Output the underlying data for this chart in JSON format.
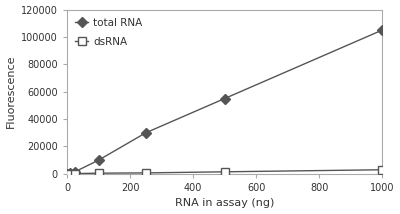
{
  "total_rna_x": [
    0,
    10,
    25,
    100,
    250,
    500,
    1000
  ],
  "total_rna_y": [
    0,
    500,
    1500,
    10000,
    30000,
    55000,
    105000
  ],
  "dsrna_x": [
    0,
    10,
    25,
    100,
    250,
    500,
    1000
  ],
  "dsrna_y": [
    0,
    100,
    200,
    500,
    700,
    1500,
    3000
  ],
  "total_rna_label": "total RNA",
  "dsrna_label": "dsRNA",
  "xlabel": "RNA in assay (ng)",
  "ylabel": "Fluorescence",
  "ylim": [
    0,
    120000
  ],
  "xlim": [
    0,
    1000
  ],
  "yticks": [
    0,
    20000,
    40000,
    60000,
    80000,
    100000,
    120000
  ],
  "xticks": [
    0,
    200,
    400,
    600,
    800,
    1000
  ],
  "background_color": "#ffffff",
  "line_color": "#555555",
  "marker_total_rna": "D",
  "marker_dsrna": "s",
  "marker_color_total_rna": "#555555",
  "marker_color_dsrna": "#ffffff",
  "marker_edge_color_dsrna": "#555555",
  "spine_color": "#aaaaaa",
  "tick_color": "#555555",
  "text_color": "#333333",
  "fontsize": 8
}
